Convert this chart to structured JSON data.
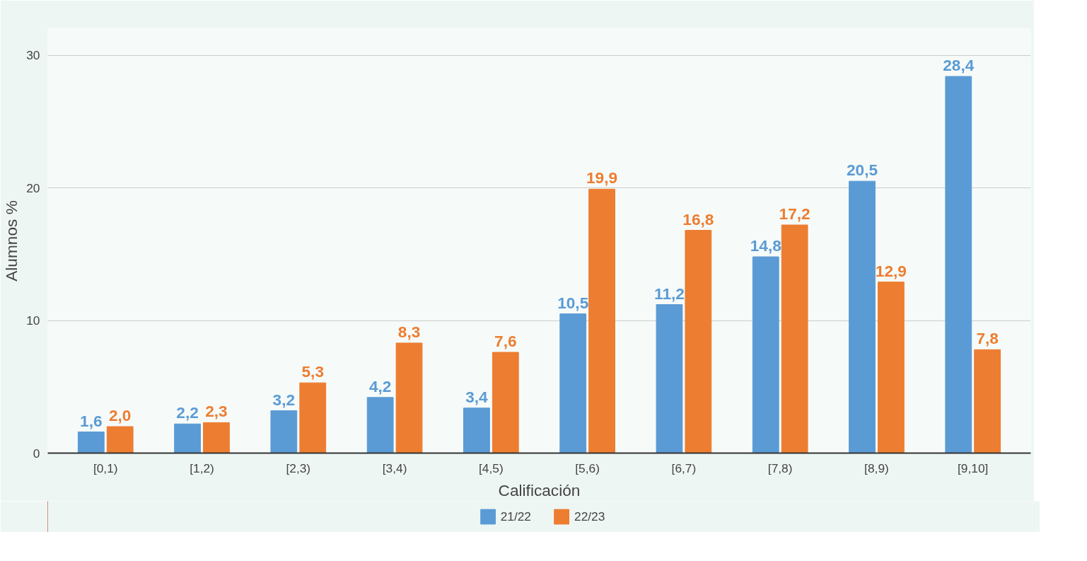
{
  "chart_data": {
    "type": "bar",
    "xlabel": "Calificación",
    "ylabel": "Alumnos %",
    "categories": [
      "[0,1)",
      "[1,2)",
      "[2,3)",
      "[3,4)",
      "[4,5)",
      "[5,6)",
      "[6,7)",
      "[7,8)",
      "[8,9)",
      "[9,10]"
    ],
    "series": [
      {
        "name": "21/22",
        "color": "#5b9bd5",
        "values": [
          1.6,
          2.2,
          3.2,
          4.2,
          3.4,
          10.5,
          11.2,
          14.8,
          20.5,
          28.4
        ],
        "value_labels": [
          "1,6",
          "2,2",
          "3,2",
          "4,2",
          "3,4",
          "10,5",
          "11,2",
          "14,8",
          "20,5",
          "28,4"
        ]
      },
      {
        "name": "22/23",
        "color": "#ed7d31",
        "values": [
          2.0,
          2.3,
          5.3,
          8.3,
          7.6,
          19.9,
          16.8,
          17.2,
          12.9,
          7.8
        ],
        "value_labels": [
          "2,0",
          "2,3",
          "5,3",
          "8,3",
          "7,6",
          "19,9",
          "16,8",
          "17,2",
          "12,9",
          "7,8"
        ]
      }
    ],
    "ylim": [
      0,
      32
    ],
    "yticks": [
      0,
      10,
      20,
      30
    ],
    "grid": "y",
    "legend": "bottom"
  }
}
